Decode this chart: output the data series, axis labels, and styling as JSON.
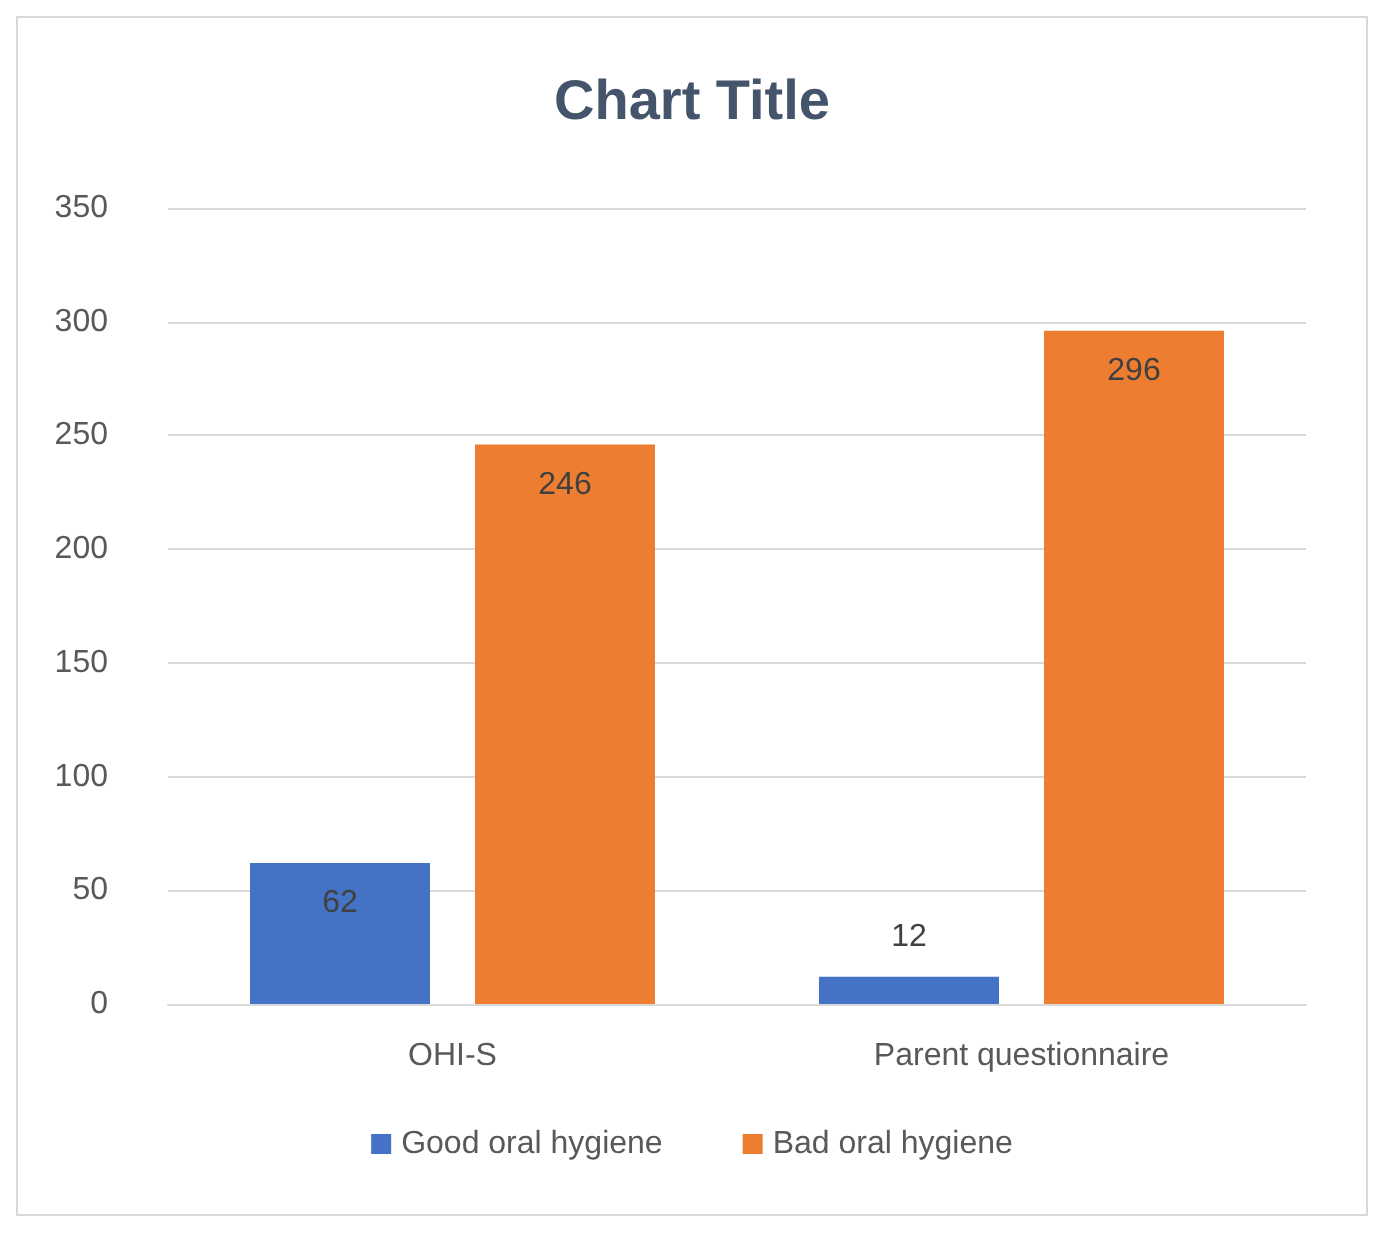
{
  "chart_data": {
    "type": "bar",
    "title": "Chart Title",
    "categories": [
      "OHI-S",
      "Parent questionnaire"
    ],
    "series": [
      {
        "name": "Good oral hygiene",
        "color": "#4472c4",
        "values": [
          62,
          12
        ]
      },
      {
        "name": "Bad oral hygiene",
        "color": "#ed7d31",
        "values": [
          246,
          296
        ]
      }
    ],
    "ylim": [
      0,
      350
    ],
    "yticks": [
      0,
      50,
      100,
      150,
      200,
      250,
      300,
      350
    ],
    "grid": "y",
    "legend": "bottom",
    "data_labels": true
  }
}
